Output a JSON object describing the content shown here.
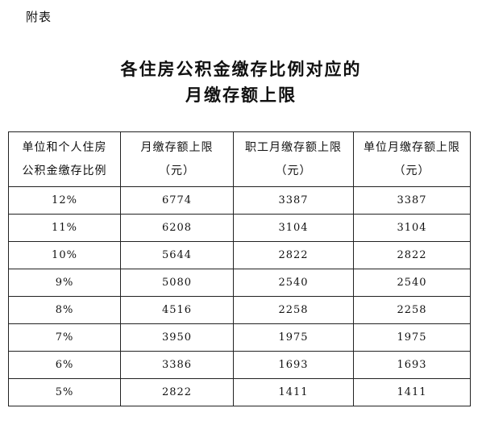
{
  "appendix_label": "附表",
  "title": {
    "line1": "各住房公积金缴存比例对应的",
    "line2": "月缴存额上限"
  },
  "table": {
    "headers": [
      {
        "line1": "单位和个人住房",
        "line2": "公积金缴存比例"
      },
      {
        "line1": "月缴存额上限",
        "line2": "（元）"
      },
      {
        "line1": "职工月缴存额上限",
        "line2": "（元）"
      },
      {
        "line1": "单位月缴存额上限",
        "line2": "（元）"
      }
    ],
    "rows": [
      [
        "12%",
        "6774",
        "3387",
        "3387"
      ],
      [
        "11%",
        "6208",
        "3104",
        "3104"
      ],
      [
        "10%",
        "5644",
        "2822",
        "2822"
      ],
      [
        "9%",
        "5080",
        "2540",
        "2540"
      ],
      [
        "8%",
        "4516",
        "2258",
        "2258"
      ],
      [
        "7%",
        "3950",
        "1975",
        "1975"
      ],
      [
        "6%",
        "3386",
        "1693",
        "1693"
      ],
      [
        "5%",
        "2822",
        "1411",
        "1411"
      ]
    ]
  }
}
